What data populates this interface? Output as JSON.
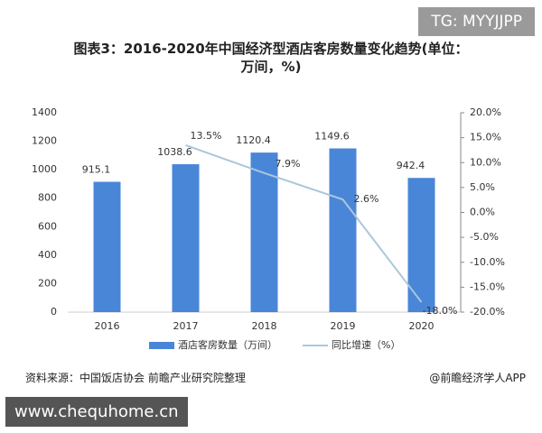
{
  "chart_data": {
    "type": "bar",
    "title": "图表3：2016-2020年中国经济型酒店客房数量变化趋势(单位：万间，%)",
    "categories": [
      "2016",
      "2017",
      "2018",
      "2019",
      "2020"
    ],
    "series": [
      {
        "name": "酒店客房数量（万间）",
        "type": "bar",
        "color": "#4a86d8",
        "values": [
          915.1,
          1038.6,
          1120.4,
          1149.6,
          942.4
        ]
      },
      {
        "name": "同比增速（%）",
        "type": "line",
        "axis": "y2",
        "color": "#a9c8da",
        "values": [
          null,
          13.5,
          7.9,
          2.6,
          -18.0
        ],
        "value_labels": [
          null,
          "13.5%",
          "7.9%",
          "2.6%",
          "-18.0%"
        ]
      }
    ],
    "ylim": [
      0,
      1400
    ],
    "yticks": [
      0,
      200,
      400,
      600,
      800,
      1000,
      1200,
      1400
    ],
    "y2lim": [
      -20,
      20
    ],
    "y2ticks": [
      {
        "value": -20,
        "label": "-20.0%"
      },
      {
        "value": -15,
        "label": "-15.0%"
      },
      {
        "value": -10,
        "label": "-10.0%"
      },
      {
        "value": -5,
        "label": "-5.0%"
      },
      {
        "value": 0,
        "label": "0.0%"
      },
      {
        "value": 5,
        "label": "5.0%"
      },
      {
        "value": 10,
        "label": "10.0%"
      },
      {
        "value": 15,
        "label": "15.0%"
      },
      {
        "value": 20,
        "label": "20.0%"
      }
    ],
    "legend": "bottom"
  },
  "watermark": "TG: MYYJJPP",
  "footer": {
    "source": "资料来源：中国饭店协会 前瞻产业研究院整理",
    "credit": "@前瞻经济学人APP"
  },
  "website": "www.chequhome.cn"
}
